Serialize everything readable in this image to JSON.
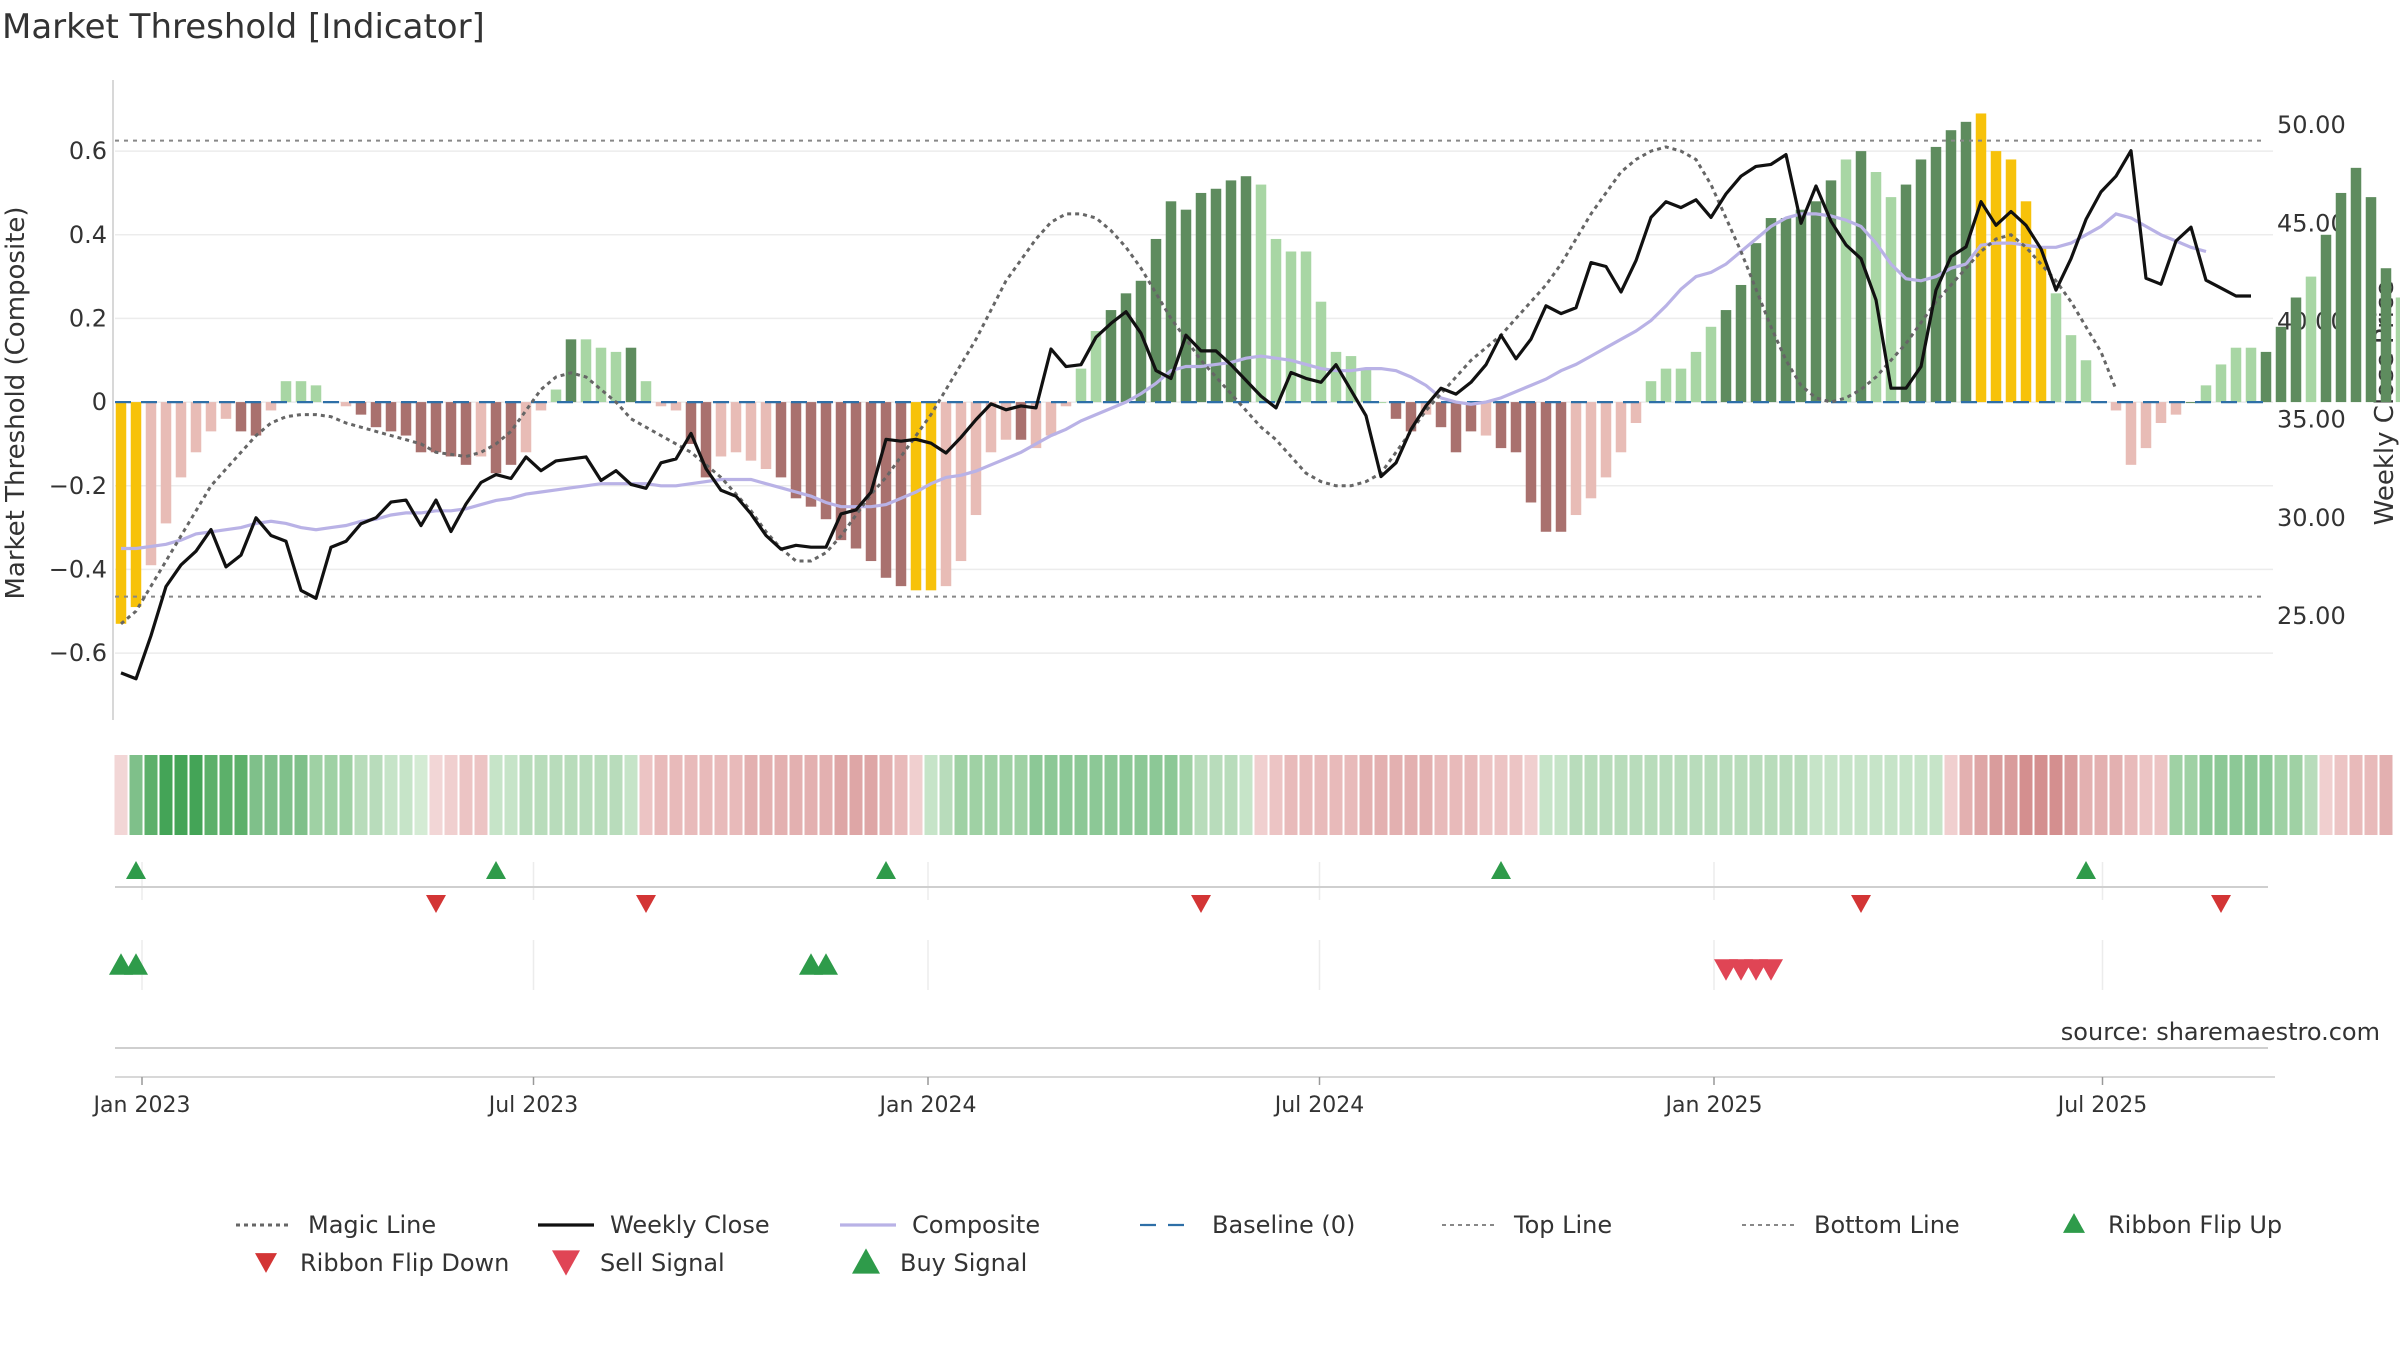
{
  "chart_data": {
    "type": "bar",
    "title": "Market Threshold [Indicator]",
    "ylabel_left": "Market Threshold (Composite)",
    "ylabel_right": "Weekly Close Price",
    "source": "source: sharemaestro.com",
    "ylim_left": [
      -0.76,
      0.77
    ],
    "ylim_right": [
      19.7,
      52.3
    ],
    "left_ticks": [
      0.6,
      0.4,
      0.2,
      0,
      -0.2,
      -0.4,
      -0.6
    ],
    "left_tick_labels": [
      "0.6",
      "0.4",
      "0.2",
      "0",
      "−0.2",
      "−0.4",
      "−0.6"
    ],
    "right_ticks": [
      50,
      45,
      40,
      35,
      30,
      25
    ],
    "right_tick_labels": [
      "50.00",
      "45.00",
      "40.00",
      "35.00",
      "30.00",
      "25.00"
    ],
    "x_ticks": [
      {
        "label": "Jan 2023",
        "week": 1.4
      },
      {
        "label": "Jul 2023",
        "week": 27.5
      },
      {
        "label": "Jan 2024",
        "week": 53.8
      },
      {
        "label": "Jul 2024",
        "week": 79.9
      },
      {
        "label": "Jan 2025",
        "week": 106.2
      },
      {
        "label": "Jul 2025",
        "week": 132.1
      }
    ],
    "top_line": 0.625,
    "bottom_line": -0.465,
    "baseline": 0,
    "composite_bars": [
      -0.53,
      -0.49,
      -0.39,
      -0.29,
      -0.18,
      -0.12,
      -0.07,
      -0.04,
      -0.07,
      -0.08,
      -0.02,
      0.05,
      0.05,
      0.04,
      0,
      -0.01,
      -0.03,
      -0.06,
      -0.07,
      -0.08,
      -0.12,
      -0.12,
      -0.13,
      -0.15,
      -0.13,
      -0.17,
      -0.15,
      -0.12,
      -0.02,
      0.03,
      0.15,
      0.15,
      0.13,
      0.12,
      0.13,
      0.05,
      -0.01,
      -0.02,
      -0.1,
      -0.18,
      -0.13,
      -0.12,
      -0.14,
      -0.16,
      -0.18,
      -0.23,
      -0.25,
      -0.28,
      -0.33,
      -0.35,
      -0.38,
      -0.42,
      -0.44,
      -0.45,
      -0.45,
      -0.44,
      -0.38,
      -0.27,
      -0.12,
      -0.09,
      -0.09,
      -0.11,
      -0.08,
      -0.01,
      0.08,
      0.17,
      0.22,
      0.26,
      0.29,
      0.39,
      0.48,
      0.46,
      0.5,
      0.51,
      0.53,
      0.54,
      0.52,
      0.39,
      0.36,
      0.36,
      0.24,
      0.12,
      0.11,
      0.08,
      0,
      -0.04,
      -0.07,
      -0.03,
      -0.06,
      -0.12,
      -0.07,
      -0.08,
      -0.11,
      -0.12,
      -0.24,
      -0.31,
      -0.31,
      -0.27,
      -0.23,
      -0.18,
      -0.12,
      -0.05,
      0.05,
      0.08,
      0.08,
      0.12,
      0.18,
      0.22,
      0.28,
      0.38,
      0.44,
      0.44,
      0.46,
      0.48,
      0.53,
      0.58,
      0.6,
      0.55,
      0.49,
      0.52,
      0.58,
      0.61,
      0.65,
      0.67,
      0.69,
      0.6,
      0.58,
      0.48,
      0.37,
      0.26,
      0.16,
      0.1,
      0,
      -0.02,
      -0.15,
      -0.11,
      -0.05,
      -0.03,
      0,
      0.04,
      0.09,
      0.13,
      0.13,
      0.12,
      0.18,
      0.25,
      0.3,
      0.4,
      0.5,
      0.56,
      0.49,
      0.32,
      0.25,
      0.19,
      0.2,
      0.08,
      -0.06
    ],
    "bar_classes": [
      "y",
      "y",
      "l",
      "l",
      "l",
      "l",
      "l",
      "l",
      "d",
      "d",
      "l",
      "l",
      "l",
      "l",
      "l",
      "l",
      "d",
      "d",
      "d",
      "d",
      "d",
      "d",
      "d",
      "d",
      "l",
      "d",
      "d",
      "l",
      "l",
      "l",
      "d",
      "l",
      "l",
      "l",
      "d",
      "l",
      "l",
      "l",
      "d",
      "d",
      "l",
      "l",
      "l",
      "l",
      "d",
      "d",
      "d",
      "d",
      "d",
      "d",
      "d",
      "d",
      "d",
      "y",
      "y",
      "l",
      "l",
      "l",
      "l",
      "l",
      "d",
      "l",
      "l",
      "l",
      "l",
      "l",
      "d",
      "d",
      "d",
      "d",
      "d",
      "d",
      "d",
      "d",
      "d",
      "d",
      "l",
      "l",
      "l",
      "l",
      "l",
      "l",
      "l",
      "l",
      "l",
      "d",
      "d",
      "l",
      "d",
      "d",
      "d",
      "l",
      "d",
      "d",
      "d",
      "d",
      "d",
      "l",
      "l",
      "l",
      "l",
      "l",
      "l",
      "l",
      "l",
      "l",
      "l",
      "d",
      "d",
      "d",
      "d",
      "d",
      "d",
      "d",
      "d",
      "l",
      "d",
      "l",
      "l",
      "d",
      "d",
      "d",
      "d",
      "d",
      "y",
      "y",
      "y",
      "y",
      "y",
      "l",
      "l",
      "l",
      "l",
      "l",
      "l",
      "l",
      "l",
      "l",
      "d",
      "l",
      "l",
      "l",
      "l",
      "d",
      "d",
      "d",
      "l",
      "d",
      "d",
      "d",
      "d",
      "d",
      "l",
      "l",
      "l",
      "d",
      "l",
      "l"
    ],
    "weekly_close": [
      22.1,
      21.8,
      24,
      26.5,
      27.6,
      28.3,
      29.4,
      27.5,
      28.1,
      30,
      29.1,
      28.8,
      26.3,
      25.9,
      28.5,
      28.8,
      29.7,
      30,
      30.8,
      30.9,
      29.6,
      30.9,
      29.3,
      30.7,
      31.8,
      32.2,
      32,
      33.1,
      32.4,
      32.9,
      33,
      33.1,
      31.9,
      32.4,
      31.7,
      31.5,
      32.8,
      33,
      34.3,
      32.5,
      31.4,
      31.1,
      30.2,
      29.1,
      28.4,
      28.6,
      28.5,
      28.5,
      30.2,
      30.4,
      31.3,
      34,
      33.9,
      34,
      33.8,
      33.3,
      34.1,
      35,
      35.8,
      35.5,
      35.7,
      35.6,
      38.6,
      37.7,
      37.8,
      39.2,
      39.9,
      40.5,
      39.4,
      37.5,
      37.1,
      39.3,
      38.5,
      38.5,
      37.8,
      37,
      36.2,
      35.6,
      37.4,
      37.1,
      36.9,
      37.8,
      36.5,
      35.2,
      32.1,
      32.8,
      34.5,
      35.7,
      36.6,
      36.3,
      36.9,
      37.8,
      39.3,
      38.1,
      39.1,
      40.8,
      40.4,
      40.7,
      43,
      42.8,
      41.5,
      43.1,
      45.3,
      46.1,
      45.8,
      46.2,
      45.3,
      46.5,
      47.4,
      47.9,
      48,
      48.5,
      45,
      46.9,
      45.1,
      43.9,
      43.2,
      41.1,
      36.6,
      36.6,
      37.7,
      41.6,
      43.3,
      43.8,
      46.1,
      44.9,
      45.6,
      44.9,
      43.7,
      41.6,
      43.2,
      45.2,
      46.6,
      47.4,
      48.7,
      42.2,
      41.9,
      44.1,
      44.8,
      42.1,
      41.7,
      41.3,
      41.3
    ],
    "composite_line": [
      -0.35,
      -0.35,
      -0.345,
      -0.34,
      -0.33,
      -0.315,
      -0.31,
      -0.305,
      -0.3,
      -0.29,
      -0.285,
      -0.29,
      -0.3,
      -0.305,
      -0.3,
      -0.295,
      -0.285,
      -0.28,
      -0.27,
      -0.265,
      -0.265,
      -0.26,
      -0.26,
      -0.255,
      -0.245,
      -0.235,
      -0.23,
      -0.22,
      -0.215,
      -0.21,
      -0.205,
      -0.2,
      -0.195,
      -0.195,
      -0.195,
      -0.195,
      -0.2,
      -0.2,
      -0.195,
      -0.19,
      -0.185,
      -0.185,
      -0.185,
      -0.195,
      -0.205,
      -0.215,
      -0.225,
      -0.24,
      -0.25,
      -0.25,
      -0.25,
      -0.245,
      -0.23,
      -0.215,
      -0.195,
      -0.18,
      -0.175,
      -0.165,
      -0.15,
      -0.135,
      -0.12,
      -0.1,
      -0.08,
      -0.065,
      -0.045,
      -0.03,
      -0.015,
      0,
      0.02,
      0.045,
      0.075,
      0.085,
      0.085,
      0.09,
      0.095,
      0.105,
      0.11,
      0.105,
      0.1,
      0.09,
      0.08,
      0.075,
      0.075,
      0.08,
      0.08,
      0.075,
      0.06,
      0.04,
      0.01,
      0,
      -0.005,
      0,
      0.01,
      0.025,
      0.04,
      0.055,
      0.075,
      0.09,
      0.11,
      0.13,
      0.15,
      0.17,
      0.195,
      0.23,
      0.27,
      0.3,
      0.31,
      0.33,
      0.36,
      0.39,
      0.42,
      0.44,
      0.45,
      0.45,
      0.445,
      0.435,
      0.42,
      0.38,
      0.33,
      0.295,
      0.29,
      0.3,
      0.32,
      0.33,
      0.375,
      0.38,
      0.38,
      0.375,
      0.37,
      0.37,
      0.38,
      0.4,
      0.42,
      0.45,
      0.44,
      0.42,
      0.4,
      0.385,
      0.37,
      0.36
    ],
    "magic_line": [
      -0.53,
      -0.5,
      -0.44,
      -0.38,
      -0.32,
      -0.26,
      -0.2,
      -0.16,
      -0.12,
      -0.08,
      -0.05,
      -0.035,
      -0.03,
      -0.03,
      -0.035,
      -0.05,
      -0.06,
      -0.07,
      -0.08,
      -0.09,
      -0.1,
      -0.12,
      -0.125,
      -0.13,
      -0.12,
      -0.1,
      -0.07,
      -0.02,
      0.03,
      0.06,
      0.07,
      0.06,
      0.03,
      0,
      -0.04,
      -0.06,
      -0.08,
      -0.1,
      -0.12,
      -0.15,
      -0.18,
      -0.22,
      -0.26,
      -0.31,
      -0.35,
      -0.38,
      -0.38,
      -0.36,
      -0.32,
      -0.27,
      -0.22,
      -0.18,
      -0.13,
      -0.08,
      -0.03,
      0.03,
      0.09,
      0.15,
      0.22,
      0.29,
      0.34,
      0.39,
      0.43,
      0.45,
      0.45,
      0.44,
      0.41,
      0.37,
      0.32,
      0.26,
      0.2,
      0.15,
      0.1,
      0.06,
      0.02,
      -0.02,
      -0.06,
      -0.09,
      -0.13,
      -0.17,
      -0.19,
      -0.2,
      -0.2,
      -0.19,
      -0.17,
      -0.12,
      -0.07,
      -0.02,
      0.02,
      0.06,
      0.1,
      0.13,
      0.16,
      0.2,
      0.24,
      0.28,
      0.33,
      0.39,
      0.45,
      0.5,
      0.55,
      0.58,
      0.6,
      0.61,
      0.6,
      0.58,
      0.52,
      0.44,
      0.36,
      0.27,
      0.18,
      0.1,
      0.04,
      0.01,
      0,
      0.01,
      0.03,
      0.06,
      0.1,
      0.14,
      0.19,
      0.24,
      0.28,
      0.32,
      0.36,
      0.39,
      0.4,
      0.37,
      0.33,
      0.29,
      0.24,
      0.18,
      0.12,
      0.03
    ]
  },
  "ribbon": [
    "#f2d6d6",
    "#7fc08a",
    "#5cb06a",
    "#44a457",
    "#44a457",
    "#44a457",
    "#5cb06a",
    "#5cb06a",
    "#5cb06a",
    "#7fc08a",
    "#7fc08a",
    "#7fc08a",
    "#7fc08a",
    "#9fd1a4",
    "#9fd1a4",
    "#9fd1a4",
    "#b8dcbb",
    "#b8dcbb",
    "#c6e4c8",
    "#c6e4c8",
    "#d4ebd4",
    "#f2d6d6",
    "#f0cfcf",
    "#ecc4c4",
    "#ecc4c4",
    "#c6e4c8",
    "#c6e4c8",
    "#b8dcbb",
    "#b8dcbb",
    "#b8dcbb",
    "#b8dcbb",
    "#b8dcbb",
    "#b8dcbb",
    "#b8dcbb",
    "#c6e4c8",
    "#ecc4c4",
    "#e8baba",
    "#e8baba",
    "#e8baba",
    "#e8baba",
    "#e8baba",
    "#e8baba",
    "#e3b0b0",
    "#e3b0b0",
    "#e3b0b0",
    "#e3b0b0",
    "#e3b0b0",
    "#e3b0b0",
    "#dea6a6",
    "#dea6a6",
    "#dea6a6",
    "#e3b0b0",
    "#e8baba",
    "#f0cfcf",
    "#c6e4c8",
    "#b8dcbb",
    "#9fd1a4",
    "#9fd1a4",
    "#9fd1a4",
    "#9fd1a4",
    "#9fd1a4",
    "#8cc896",
    "#8cc896",
    "#8cc896",
    "#8cc896",
    "#8cc896",
    "#8cc896",
    "#8cc896",
    "#8cc896",
    "#8cc896",
    "#8cc896",
    "#9fd1a4",
    "#b8dcbb",
    "#b8dcbb",
    "#b8dcbb",
    "#c6e4c8",
    "#f0cfcf",
    "#ecc4c4",
    "#e8baba",
    "#e8baba",
    "#e8baba",
    "#e8baba",
    "#e8baba",
    "#e3b0b0",
    "#e3b0b0",
    "#e3b0b0",
    "#e3b0b0",
    "#e3b0b0",
    "#e8baba",
    "#e8baba",
    "#e8baba",
    "#ecc4c4",
    "#ecc4c4",
    "#ecc4c4",
    "#f0cfcf",
    "#c6e4c8",
    "#c6e4c8",
    "#b8dcbb",
    "#b8dcbb",
    "#b8dcbb",
    "#b8dcbb",
    "#b8dcbb",
    "#b8dcbb",
    "#b8dcbb",
    "#b8dcbb",
    "#b8dcbb",
    "#b8dcbb",
    "#b8dcbb",
    "#b8dcbb",
    "#b8dcbb",
    "#b8dcbb",
    "#b8dcbb",
    "#b8dcbb",
    "#c6e4c8",
    "#c6e4c8",
    "#c6e4c8",
    "#c6e4c8",
    "#c6e4c8",
    "#c6e4c8",
    "#c6e4c8",
    "#c6e4c8",
    "#c6e4c8",
    "#f0cfcf",
    "#e3b0b0",
    "#dea6a6",
    "#d99c9c",
    "#d99c9c",
    "#d48f8f",
    "#d48f8f",
    "#d48f8f",
    "#d99c9c",
    "#e3b0b0",
    "#e3b0b0",
    "#e3b0b0",
    "#e8baba",
    "#ecc4c4",
    "#ecc4c4",
    "#9fd1a4",
    "#9fd1a4",
    "#8cc896",
    "#8cc896",
    "#8cc896",
    "#8cc896",
    "#8cc896",
    "#9fd1a4",
    "#9fd1a4",
    "#b8dcbb",
    "#f0cfcf",
    "#ecc4c4",
    "#e8baba",
    "#e8baba",
    "#e3b0b0"
  ],
  "ribbon_flip_up_weeks": [
    1,
    25,
    51,
    92,
    131
  ],
  "ribbon_flip_down_weeks": [
    21,
    35,
    72,
    116,
    140
  ],
  "buy_signal_weeks": [
    0,
    1,
    46,
    47
  ],
  "sell_signal_weeks": [
    107,
    108,
    109,
    110
  ],
  "colors": {
    "bar_light_green": "#a8d6a4",
    "bar_dark_green": "#5e8c5e",
    "bar_light_red": "#e8bcb6",
    "bar_dark_red": "#a9716e",
    "bar_yellow": "#f7c20a",
    "weekly_close": "#111111",
    "composite": "#b9b2e6",
    "magic_line": "#666666",
    "baseline": "#2e6fa7",
    "threshold_line": "#888888",
    "flip_up": "#2e9b4a",
    "flip_down": "#d33535",
    "buy": "#2e9b4a",
    "sell": "#e04555"
  },
  "legend": [
    {
      "label": "Magic Line",
      "kind": "dotted-line"
    },
    {
      "label": "Weekly Close",
      "kind": "solid-line"
    },
    {
      "label": "Composite",
      "kind": "composite-line"
    },
    {
      "label": "Baseline (0)",
      "kind": "dashed-line"
    },
    {
      "label": "Top Line",
      "kind": "thin-dotted-line"
    },
    {
      "label": "Bottom Line",
      "kind": "thin-dotted-line"
    },
    {
      "label": "Ribbon Flip Up",
      "kind": "small-up-triangle"
    },
    {
      "label": "Ribbon Flip Down",
      "kind": "small-down-triangle"
    },
    {
      "label": "Sell Signal",
      "kind": "down-triangle"
    },
    {
      "label": "Buy Signal",
      "kind": "up-triangle"
    }
  ]
}
